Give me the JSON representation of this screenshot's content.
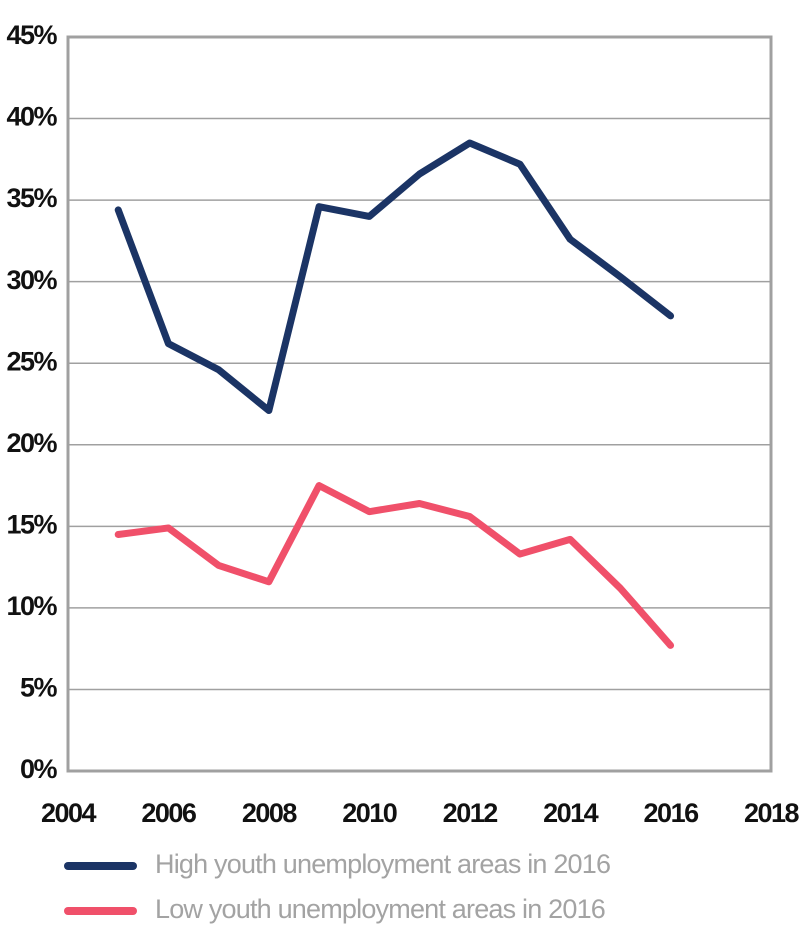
{
  "chart_data": {
    "type": "line",
    "x": [
      2005,
      2006,
      2007,
      2008,
      2009,
      2010,
      2011,
      2012,
      2013,
      2014,
      2015,
      2016
    ],
    "series": [
      {
        "name": "High youth unemployment areas in 2016",
        "color": "#1b3465",
        "values": [
          34.4,
          26.2,
          24.6,
          22.1,
          34.6,
          34.0,
          36.6,
          38.5,
          37.2,
          32.6,
          30.3,
          27.9
        ]
      },
      {
        "name": "Low youth unemployment areas in 2016",
        "color": "#f0506a",
        "values": [
          14.5,
          14.9,
          12.6,
          11.6,
          17.5,
          15.9,
          16.4,
          15.6,
          13.3,
          14.2,
          11.2,
          7.7
        ]
      }
    ],
    "xlim": [
      2004,
      2018
    ],
    "xticks": [
      2004,
      2006,
      2008,
      2010,
      2012,
      2014,
      2016,
      2018
    ],
    "ylim": [
      0,
      45
    ],
    "yticks": [
      {
        "value": 0,
        "label": "0%"
      },
      {
        "value": 5,
        "label": "5%"
      },
      {
        "value": 10,
        "label": "10%"
      },
      {
        "value": 15,
        "label": "15%"
      },
      {
        "value": 20,
        "label": "20%"
      },
      {
        "value": 25,
        "label": "25%"
      },
      {
        "value": 30,
        "label": "30%"
      },
      {
        "value": 35,
        "label": "35%"
      },
      {
        "value": 40,
        "label": "40%"
      },
      {
        "value": 45,
        "label": "45%"
      }
    ],
    "grid": true
  }
}
